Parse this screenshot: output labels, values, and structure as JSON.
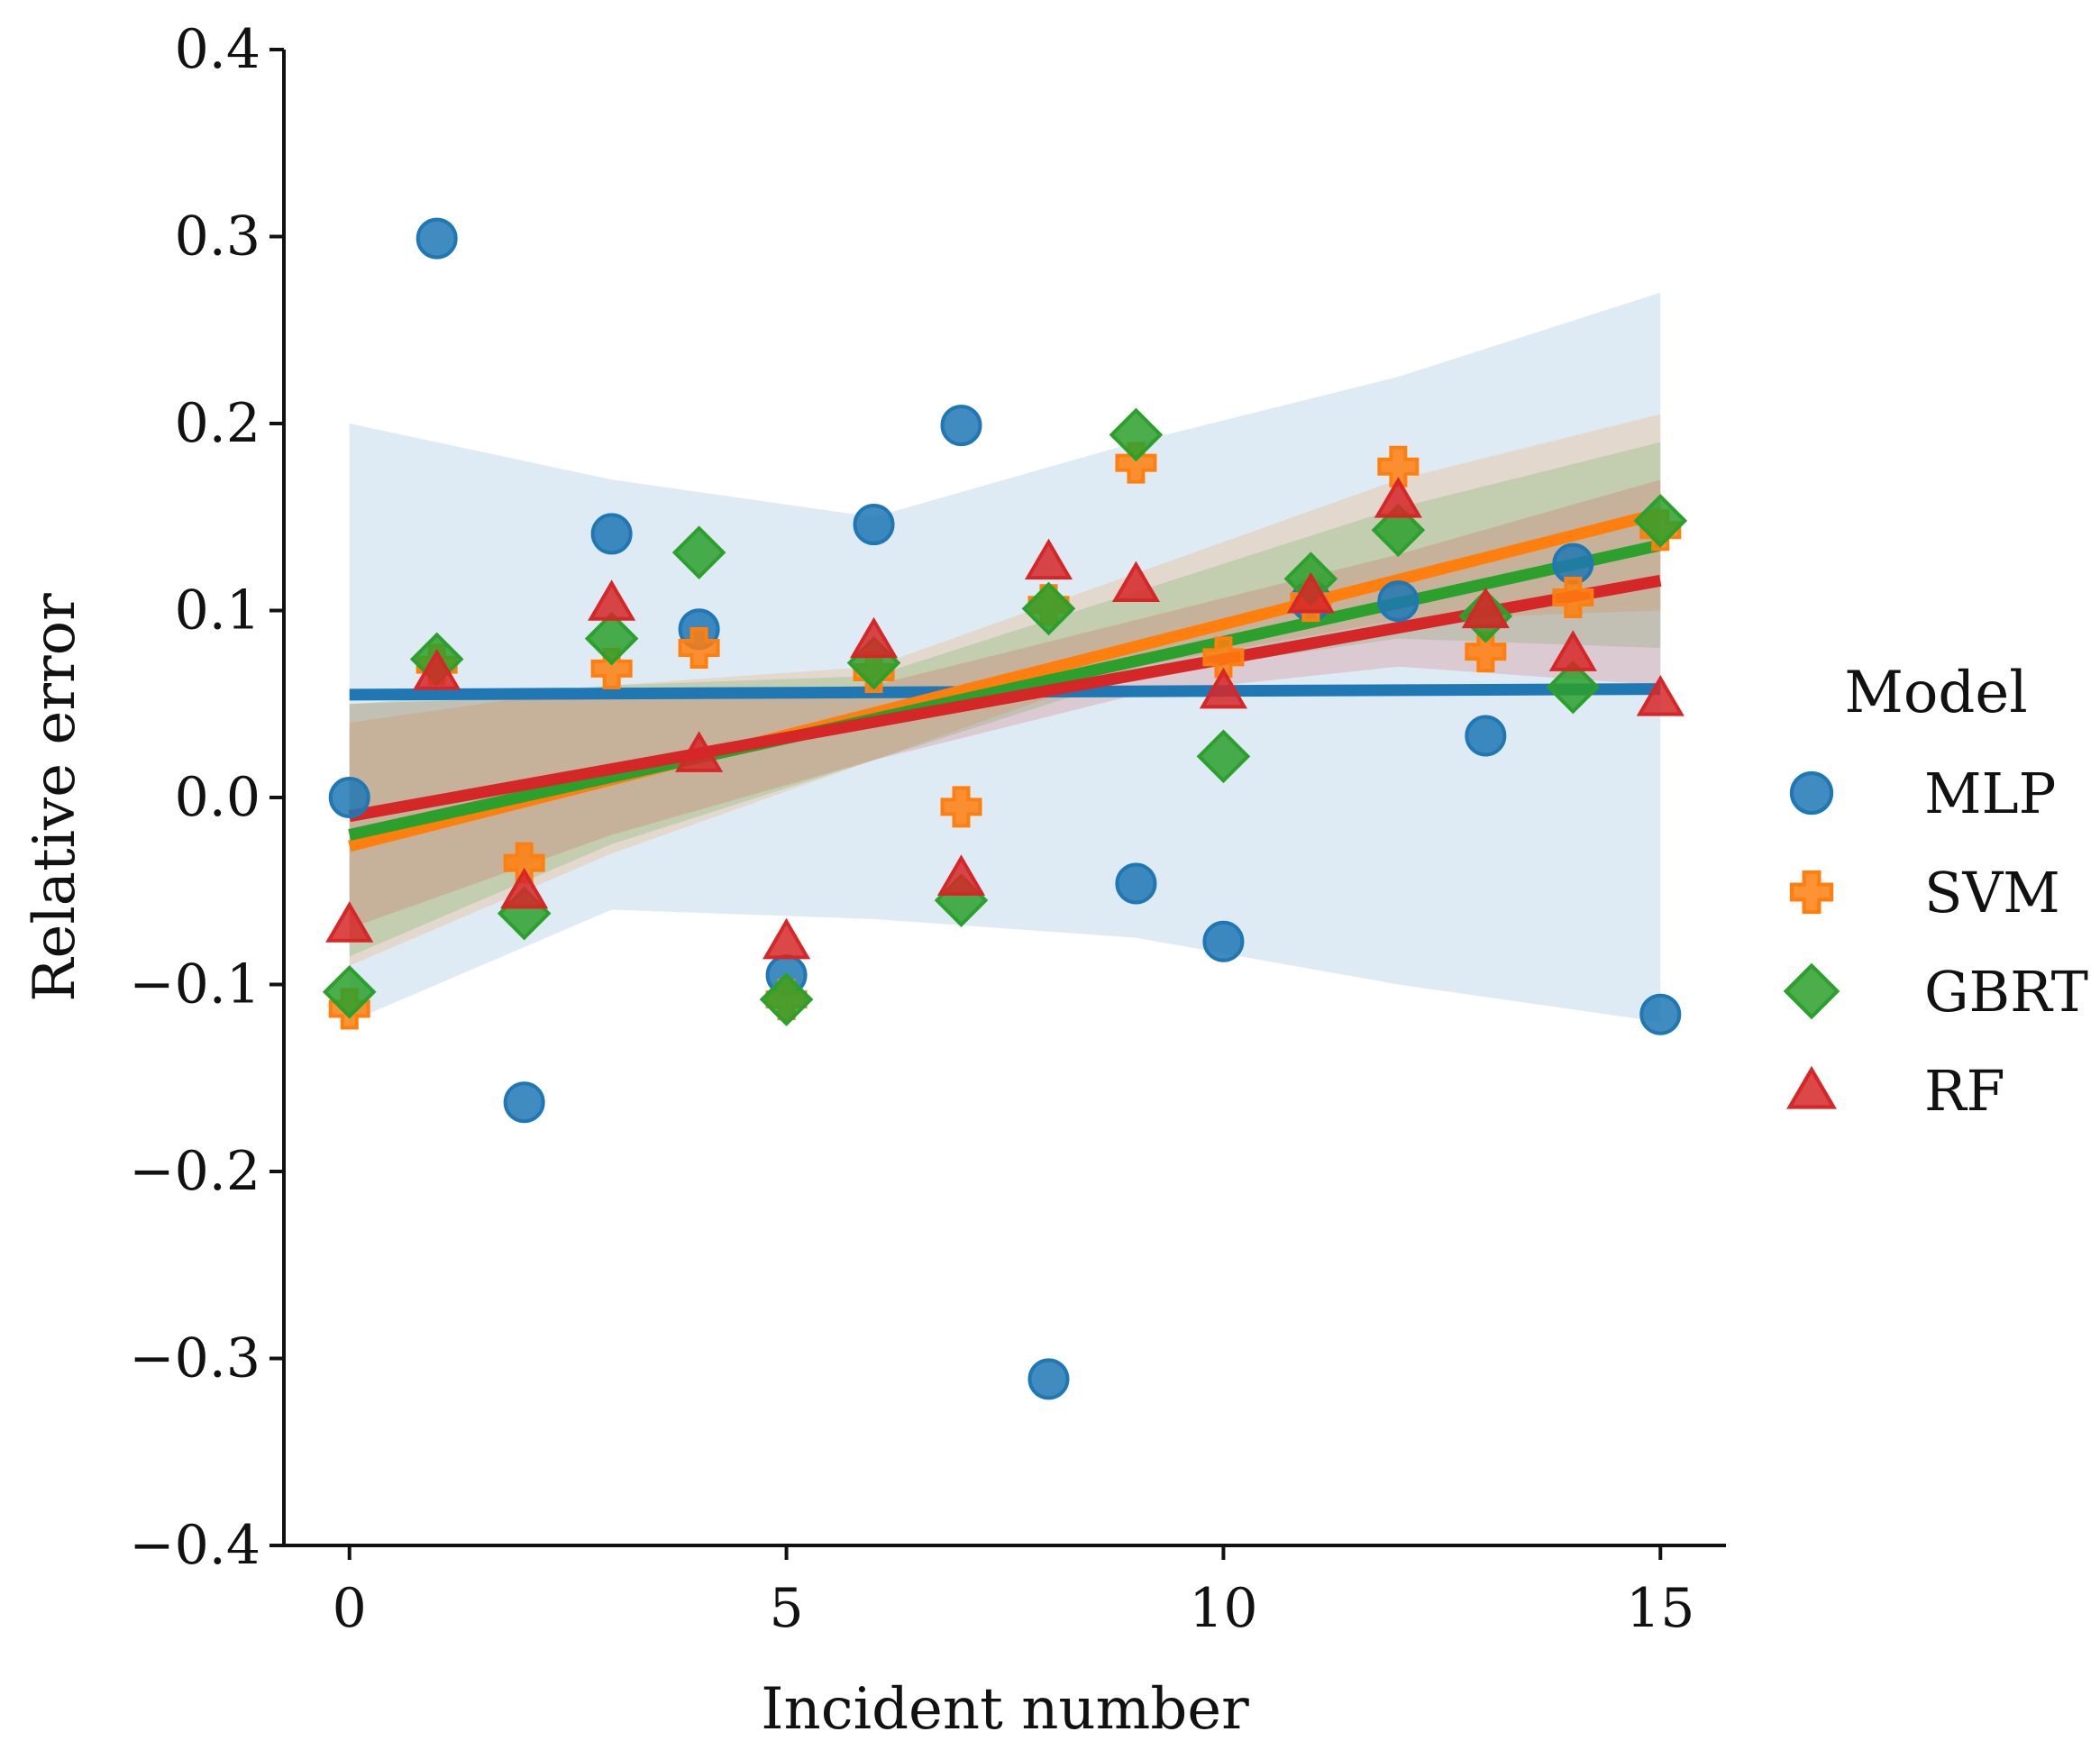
{
  "chart_data": {
    "type": "scatter",
    "title": "",
    "xlabel": "Incident number",
    "ylabel": "Relative error",
    "xlim": [
      -0.75,
      15.75
    ],
    "ylim": [
      -0.4,
      0.4
    ],
    "xticks": [
      0,
      5,
      10,
      15
    ],
    "yticks": [
      0.4,
      0.3,
      0.2,
      0.1,
      0.0,
      -0.1,
      -0.2,
      -0.3,
      -0.4
    ],
    "x_tick_labels": [
      "0",
      "5",
      "10",
      "15"
    ],
    "y_tick_labels": [
      "0.4",
      "0.3",
      "0.2",
      "0.1",
      "0.0",
      "−0.1",
      "−0.2",
      "−0.3",
      "−0.4"
    ],
    "grid": false,
    "legend": {
      "title": "Model",
      "position": "right"
    },
    "x": [
      0,
      1,
      2,
      3,
      4,
      5,
      6,
      7,
      8,
      9,
      10,
      11,
      12,
      13,
      14,
      15
    ],
    "series": [
      {
        "name": "MLP",
        "marker": "circle",
        "color": "#1f77b4",
        "values": [
          0.0,
          0.299,
          -0.163,
          0.141,
          0.09,
          -0.095,
          0.146,
          0.199,
          -0.311,
          -0.046,
          -0.077,
          0.105,
          0.105,
          0.033,
          0.125,
          -0.116
        ],
        "fit": [
          0.055,
          0.058
        ],
        "ci_lower": [
          -0.12,
          -0.06,
          -0.065,
          -0.075,
          -0.1,
          -0.12
        ],
        "ci_upper": [
          0.2,
          0.17,
          0.15,
          0.19,
          0.225,
          0.27
        ]
      },
      {
        "name": "SVM",
        "marker": "plus",
        "color": "#ff7f0e",
        "values": [
          -0.113,
          0.071,
          -0.035,
          0.069,
          0.08,
          -0.108,
          0.067,
          -0.005,
          0.103,
          0.179,
          0.075,
          0.105,
          0.177,
          0.078,
          0.107,
          0.143
        ],
        "fit": [
          -0.026,
          0.152
        ],
        "ci_lower": [
          -0.09,
          -0.03,
          0.02,
          0.07,
          0.095,
          0.1
        ],
        "ci_upper": [
          0.04,
          0.06,
          0.07,
          0.12,
          0.17,
          0.205
        ]
      },
      {
        "name": "GBRT",
        "marker": "diamond",
        "color": "#2ca02c",
        "values": [
          -0.104,
          0.074,
          -0.062,
          0.085,
          0.131,
          -0.108,
          0.072,
          -0.055,
          0.101,
          0.194,
          0.022,
          0.117,
          0.143,
          0.097,
          0.059,
          0.148
        ],
        "fit": [
          -0.02,
          0.135
        ],
        "ci_lower": [
          -0.085,
          -0.025,
          0.02,
          0.065,
          0.085,
          0.08
        ],
        "ci_upper": [
          0.05,
          0.06,
          0.065,
          0.11,
          0.155,
          0.19
        ]
      },
      {
        "name": "RF",
        "marker": "triangle",
        "color": "#d62728",
        "values": [
          -0.068,
          0.067,
          -0.05,
          0.104,
          0.023,
          -0.077,
          0.084,
          -0.043,
          0.126,
          0.114,
          0.057,
          0.108,
          0.159,
          0.1,
          0.077,
          0.053
        ],
        "fit": [
          -0.01,
          0.116
        ],
        "ci_lower": [
          -0.07,
          -0.02,
          0.02,
          0.055,
          0.07,
          0.06
        ],
        "ci_upper": [
          0.05,
          0.055,
          0.06,
          0.095,
          0.13,
          0.17
        ]
      }
    ],
    "ci_x": [
      0,
      3,
      6,
      9,
      12,
      15
    ]
  }
}
